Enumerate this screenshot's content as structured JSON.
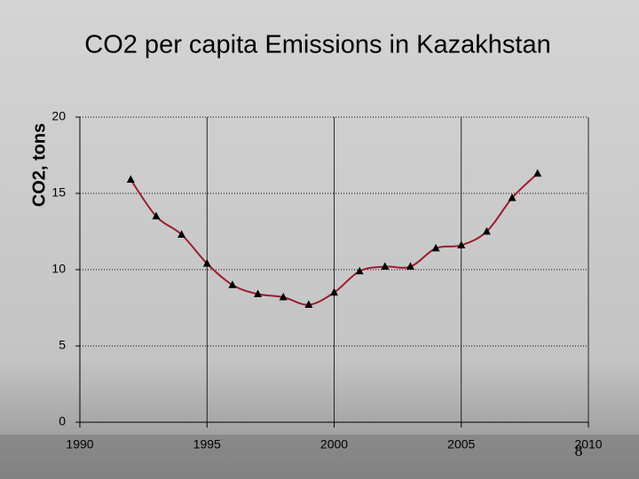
{
  "chart_data": {
    "type": "line",
    "title": "CO2 per capita Emissions in Kazakhstan",
    "y_label": "CO2, tons",
    "x": [
      1992,
      1993,
      1994,
      1995,
      1996,
      1997,
      1998,
      1999,
      2000,
      2001,
      2002,
      2003,
      2004,
      2005,
      2006,
      2007,
      2008
    ],
    "values": [
      15.9,
      13.5,
      12.3,
      10.4,
      9.0,
      8.4,
      8.2,
      7.7,
      8.5,
      9.9,
      10.2,
      10.2,
      11.4,
      11.6,
      12.5,
      14.7,
      16.3
    ],
    "color": "#9b1c2c",
    "marker_color": "#000000",
    "xlim": [
      1990,
      2010
    ],
    "xticks": [
      1990,
      1995,
      2000,
      2005,
      2010
    ],
    "ylim": [
      0,
      20
    ],
    "yticks": [
      0,
      5,
      10,
      15,
      20
    ],
    "grid": true
  },
  "slide_number": "8"
}
